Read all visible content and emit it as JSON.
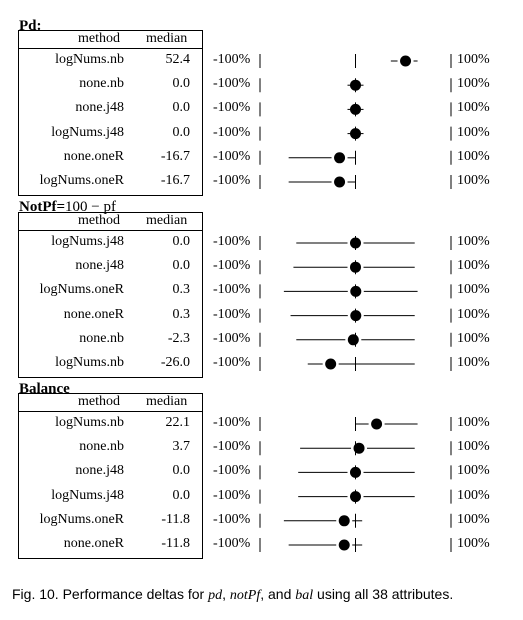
{
  "header": {
    "method": "method",
    "median": "median"
  },
  "axis": {
    "left": "-100%",
    "right": "100%"
  },
  "sections": [
    {
      "title": "Pd:",
      "rows": [
        {
          "method": "logNums.nb",
          "median": "52.4",
          "med": 52.4,
          "q1": 37,
          "q3": 65
        },
        {
          "method": "none.nb",
          "median": "0.0",
          "med": 0.0,
          "q1": -0.5,
          "q3": 0.5
        },
        {
          "method": "none.j48",
          "median": "0.0",
          "med": 0.0,
          "q1": -2,
          "q3": 2
        },
        {
          "method": "logNums.j48",
          "median": "0.0",
          "med": 0.0,
          "q1": -1,
          "q3": 1
        },
        {
          "method": "none.oneR",
          "median": "-16.7",
          "med": -16.7,
          "q1": -70,
          "q3": 0
        },
        {
          "method": "logNums.oneR",
          "median": "-16.7",
          "med": -16.7,
          "q1": -70,
          "q3": 0
        }
      ]
    },
    {
      "title": "NotPf=",
      "title_math": "100 − pf",
      "rows": [
        {
          "method": "logNums.j48",
          "median": "0.0",
          "med": 0.0,
          "q1": -62,
          "q3": 62
        },
        {
          "method": "none.j48",
          "median": "0.0",
          "med": 0.0,
          "q1": -65,
          "q3": 62
        },
        {
          "method": "logNums.oneR",
          "median": "0.3",
          "med": 0.3,
          "q1": -75,
          "q3": 65
        },
        {
          "method": "none.oneR",
          "median": "0.3",
          "med": 0.3,
          "q1": -68,
          "q3": 62
        },
        {
          "method": "none.nb",
          "median": "-2.3",
          "med": -2.3,
          "q1": -62,
          "q3": 62
        },
        {
          "method": "logNums.nb",
          "median": "-26.0",
          "med": -26.0,
          "q1": -50,
          "q3": 62
        }
      ]
    },
    {
      "title": "Balance",
      "rows": [
        {
          "method": "logNums.nb",
          "median": "22.1",
          "med": 22.1,
          "q1": 0,
          "q3": 65
        },
        {
          "method": "none.nb",
          "median": "3.7",
          "med": 3.7,
          "q1": -58,
          "q3": 62
        },
        {
          "method": "none.j48",
          "median": "0.0",
          "med": 0.0,
          "q1": -60,
          "q3": 62
        },
        {
          "method": "logNums.j48",
          "median": "0.0",
          "med": 0.0,
          "q1": -60,
          "q3": 62
        },
        {
          "method": "logNums.oneR",
          "median": "-11.8",
          "med": -11.8,
          "q1": -75,
          "q3": 7
        },
        {
          "method": "none.oneR",
          "median": "-11.8",
          "med": -11.8,
          "q1": -70,
          "q3": 7
        }
      ]
    }
  ],
  "caption": {
    "prefix": "Fig. 10. Performance deltas for ",
    "v1": "pd",
    "sep1": ", ",
    "v2": "notPf",
    "sep2": ", and ",
    "v3": "bal",
    "suffix": " using all 38 attributes."
  }
}
